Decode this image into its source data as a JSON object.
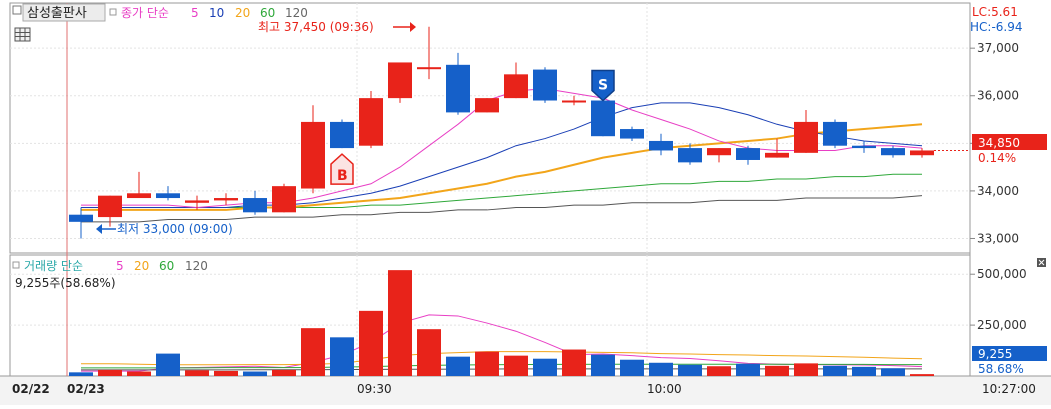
{
  "legend_price": {
    "title": "삼성출판사",
    "label": "종가 단순",
    "periods": [
      "5",
      "10",
      "20",
      "60",
      "120"
    ]
  },
  "legend_volume": {
    "label": "거래량 단순",
    "periods": [
      "5",
      "20",
      "60",
      "120"
    ],
    "current": "9,255주(58.68%)"
  },
  "top_right": {
    "lc": "LC:5.61",
    "hc": "HC:-6.94"
  },
  "annotations": {
    "high": "최고 37,450 (09:36)",
    "low": "최저 33,000 (09:00)",
    "buy": "B",
    "sell": "S"
  },
  "price_badge": {
    "value": "34,850",
    "change": "0.14%"
  },
  "volume_badge": {
    "value": "9,255",
    "ratio": "58.68%"
  },
  "colors": {
    "up": "#e8231a",
    "down": "#1560c9",
    "ma5": "#e83fc5",
    "ma10": "#1a3fb5",
    "ma20": "#f2a51a",
    "ma60": "#2fa83a",
    "ma120": "#555555"
  },
  "chart_data": [
    {
      "type": "candlestick",
      "price_axis": {
        "ticks": [
          33000,
          34000,
          35000,
          36000,
          37000
        ],
        "tick_labels": [
          "33,000",
          "34,000",
          "35,000",
          "36,000",
          "37,000"
        ],
        "range": [
          32800,
          37550
        ]
      },
      "x_axis": {
        "labels": [
          "02/22",
          "02/23",
          "09:30",
          "10:00",
          "10:27:00"
        ],
        "label_index": [
          null,
          0,
          10,
          20,
          null
        ]
      },
      "candles": [
        {
          "o": 33500,
          "h": 33650,
          "l": 33000,
          "c": 33350
        },
        {
          "o": 33450,
          "h": 33900,
          "l": 33250,
          "c": 33900
        },
        {
          "o": 33850,
          "h": 34400,
          "l": 33850,
          "c": 33950
        },
        {
          "o": 33950,
          "h": 34100,
          "l": 33800,
          "c": 33850
        },
        {
          "o": 33750,
          "h": 33900,
          "l": 33600,
          "c": 33800
        },
        {
          "o": 33800,
          "h": 33950,
          "l": 33700,
          "c": 33850
        },
        {
          "o": 33850,
          "h": 34000,
          "l": 33500,
          "c": 33550
        },
        {
          "o": 33550,
          "h": 34150,
          "l": 33550,
          "c": 34100
        },
        {
          "o": 34050,
          "h": 35800,
          "l": 33950,
          "c": 35450
        },
        {
          "o": 35450,
          "h": 35500,
          "l": 34900,
          "c": 34900
        },
        {
          "o": 34950,
          "h": 36100,
          "l": 34900,
          "c": 35950
        },
        {
          "o": 35950,
          "h": 36700,
          "l": 35850,
          "c": 36700
        },
        {
          "o": 36600,
          "h": 37450,
          "l": 36350,
          "c": 36600
        },
        {
          "o": 36650,
          "h": 36900,
          "l": 35600,
          "c": 35650
        },
        {
          "o": 35650,
          "h": 35950,
          "l": 35650,
          "c": 35950
        },
        {
          "o": 35950,
          "h": 36700,
          "l": 35950,
          "c": 36450
        },
        {
          "o": 36550,
          "h": 36600,
          "l": 35850,
          "c": 35900
        },
        {
          "o": 35900,
          "h": 36000,
          "l": 35800,
          "c": 35900
        },
        {
          "o": 35900,
          "h": 35900,
          "l": 35150,
          "c": 35150
        },
        {
          "o": 35300,
          "h": 35350,
          "l": 35050,
          "c": 35100
        },
        {
          "o": 35050,
          "h": 35200,
          "l": 34750,
          "c": 34850
        },
        {
          "o": 34900,
          "h": 35000,
          "l": 34550,
          "c": 34600
        },
        {
          "o": 34750,
          "h": 34900,
          "l": 34600,
          "c": 34900
        },
        {
          "o": 34900,
          "h": 34950,
          "l": 34550,
          "c": 34650
        },
        {
          "o": 34700,
          "h": 35100,
          "l": 34700,
          "c": 34800
        },
        {
          "o": 34800,
          "h": 35700,
          "l": 34800,
          "c": 35450
        },
        {
          "o": 35450,
          "h": 35500,
          "l": 34900,
          "c": 34950
        },
        {
          "o": 34950,
          "h": 35050,
          "l": 34800,
          "c": 34900
        },
        {
          "o": 34900,
          "h": 34950,
          "l": 34700,
          "c": 34750
        },
        {
          "o": 34750,
          "h": 34900,
          "l": 34700,
          "c": 34850
        }
      ],
      "ma": {
        "5": [
          33700,
          33700,
          33700,
          33700,
          33650,
          33700,
          33750,
          33750,
          33850,
          34000,
          34150,
          34500,
          34950,
          35400,
          35900,
          36100,
          36150,
          36050,
          35950,
          35700,
          35500,
          35300,
          35050,
          34900,
          34850,
          34850,
          34850,
          34950,
          34950,
          34900
        ],
        "10": [
          33650,
          33650,
          33650,
          33650,
          33650,
          33650,
          33700,
          33700,
          33750,
          33850,
          33950,
          34100,
          34300,
          34500,
          34700,
          34950,
          35100,
          35300,
          35550,
          35750,
          35850,
          35850,
          35750,
          35600,
          35400,
          35250,
          35150,
          35050,
          35000,
          34950
        ],
        "20": [
          33600,
          33600,
          33600,
          33600,
          33600,
          33600,
          33650,
          33650,
          33700,
          33750,
          33800,
          33850,
          33950,
          34050,
          34150,
          34300,
          34400,
          34550,
          34700,
          34800,
          34900,
          34950,
          35000,
          35050,
          35100,
          35200,
          35250,
          35300,
          35350,
          35400
        ],
        "60": [
          33650,
          33650,
          33650,
          33650,
          33650,
          33650,
          33650,
          33650,
          33650,
          33650,
          33700,
          33700,
          33750,
          33800,
          33850,
          33900,
          33950,
          34000,
          34050,
          34100,
          34150,
          34150,
          34200,
          34200,
          34250,
          34250,
          34300,
          34300,
          34350,
          34350
        ],
        "120": [
          33350,
          33350,
          33350,
          33400,
          33400,
          33400,
          33450,
          33450,
          33450,
          33500,
          33500,
          33550,
          33550,
          33600,
          33600,
          33650,
          33650,
          33700,
          33700,
          33750,
          33750,
          33750,
          33800,
          33800,
          33800,
          33850,
          33850,
          33850,
          33850,
          33900
        ]
      },
      "signals": [
        {
          "type": "B",
          "index": 9
        },
        {
          "type": "S",
          "index": 18
        }
      ],
      "current_price": 34850
    },
    {
      "type": "bar",
      "title": "volume",
      "y_axis": {
        "ticks": [
          250000,
          500000
        ],
        "tick_labels": [
          "250,000",
          "500,000"
        ],
        "max": 560000
      },
      "values": [
        18000,
        30000,
        22000,
        110000,
        28000,
        25000,
        22000,
        30000,
        235000,
        190000,
        320000,
        520000,
        230000,
        95000,
        120000,
        100000,
        85000,
        130000,
        105000,
        80000,
        65000,
        55000,
        48000,
        60000,
        50000,
        62000,
        50000,
        45000,
        38000,
        9255
      ],
      "ma5": [
        24000,
        24000,
        24000,
        40000,
        42000,
        45000,
        48000,
        42000,
        67000,
        103000,
        165000,
        260000,
        300000,
        295000,
        260000,
        220000,
        165000,
        105000,
        108000,
        100000,
        90000,
        86000,
        75000,
        62000,
        58000,
        56000,
        55000,
        54000,
        51000,
        46000
      ],
      "ma20": [
        60000,
        60000,
        58000,
        55000,
        55000,
        55000,
        56000,
        56000,
        58000,
        62000,
        80000,
        100000,
        110000,
        115000,
        120000,
        120000,
        120000,
        118000,
        116000,
        114000,
        110000,
        108000,
        105000,
        103000,
        100000,
        98000,
        95000,
        92000,
        88000,
        85000
      ],
      "ma60": [
        40000,
        40000,
        40000,
        40000,
        40000,
        41000,
        41000,
        41000,
        42000,
        44000,
        46000,
        50000,
        52000,
        54000,
        55000,
        56000,
        57000,
        57000,
        58000,
        58000,
        58000,
        58000,
        58000,
        58000,
        58000,
        57000,
        57000,
        57000,
        56000,
        56000
      ],
      "ma120": [
        30000,
        30000,
        30000,
        30000,
        30000,
        30000,
        31000,
        31000,
        31000,
        32000,
        32000,
        33000,
        33000,
        34000,
        34000,
        35000,
        35000,
        35000,
        35000,
        35000,
        35000,
        35000,
        35000,
        35000,
        35000,
        35000,
        35000,
        35000,
        35000,
        35000
      ]
    }
  ]
}
